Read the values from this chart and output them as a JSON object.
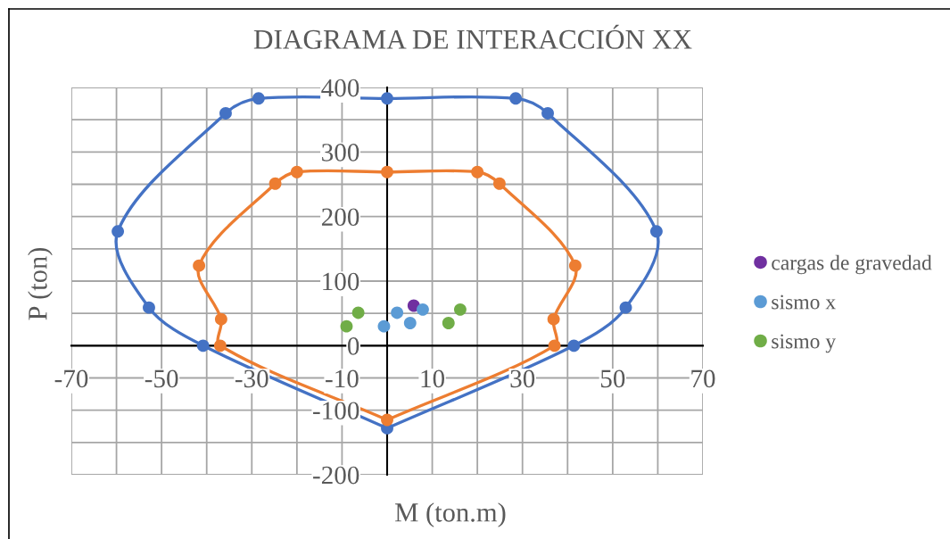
{
  "chart_data": {
    "type": "scatter",
    "title": "DIAGRAMA DE INTERACCIÓN XX",
    "xlabel": "M (ton.m)",
    "ylabel": "P (ton)",
    "xlim": [
      -70,
      70
    ],
    "ylim": [
      -200,
      400
    ],
    "xticks": [
      -70,
      {
        "value": -60,
        "label": null
      },
      -50,
      {
        "value": -40,
        "label": null
      },
      -30,
      {
        "value": -20,
        "label": null
      },
      -10,
      {
        "value": 0,
        "label": null
      },
      10,
      {
        "value": 20,
        "label": null
      },
      30,
      {
        "value": 40,
        "label": null
      },
      50,
      {
        "value": 60,
        "label": null
      },
      70
    ],
    "yticks": [
      -200,
      {
        "value": -150,
        "label": null
      },
      -100,
      {
        "value": -50,
        "label": null
      },
      0,
      {
        "value": 50,
        "label": null
      },
      100,
      {
        "value": 150,
        "label": null
      },
      200,
      {
        "value": 250,
        "label": null
      },
      300,
      {
        "value": 350,
        "label": null
      },
      400
    ],
    "grid": true,
    "legend": "right",
    "marker": "circle",
    "series": [
      {
        "color": "#4472c4",
        "line_style": "solid",
        "x": [
          0,
          41.4,
          52.9,
          59.7,
          35.6,
          28.5,
          0,
          -28.5,
          -35.8,
          -59.7,
          -52.8,
          -40.8
        ],
        "values": [
          -128,
          0,
          59,
          177,
          360,
          383,
          383,
          383,
          360,
          177,
          59,
          0
        ]
      },
      {
        "color": "#ed7d31",
        "line_style": "solid",
        "x": [
          0,
          37.1,
          36.9,
          41.7,
          24.9,
          20,
          0,
          -20,
          -24.8,
          -41.7,
          -36.8,
          -37
        ],
        "values": [
          -115,
          0,
          41,
          124,
          251,
          269,
          269,
          269,
          251,
          124,
          41,
          0
        ]
      },
      {
        "name": "cargas de gravedad",
        "color": "#7030a0",
        "x": [
          5.9
        ],
        "values": [
          62
        ]
      },
      {
        "name": "sismo x",
        "color": "#5b9bd5",
        "x": [
          -0.7,
          2.2,
          5.1,
          7.9
        ],
        "values": [
          30,
          51,
          35,
          56
        ]
      },
      {
        "name": "sismo y",
        "color": "#70ad47",
        "x": [
          -9.0,
          -6.4,
          13.6,
          16.2
        ],
        "values": [
          30,
          51,
          35,
          56
        ]
      }
    ]
  }
}
